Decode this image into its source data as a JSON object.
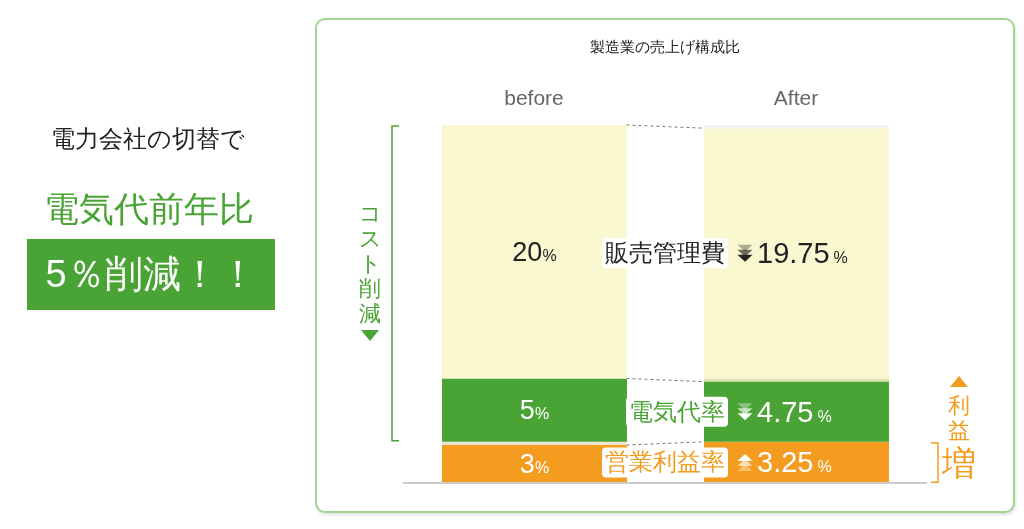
{
  "chart_data": {
    "type": "bar",
    "title": "製造業の売上げ構成比",
    "categories": [
      "before",
      "After"
    ],
    "stacked": true,
    "series": [
      {
        "name": "営業利益率",
        "color": "#f39c1f",
        "values": [
          3,
          3.25
        ],
        "value_labels": [
          "3%",
          "3.25%"
        ]
      },
      {
        "color": "#ede4d2",
        "values": [
          0.25,
          null
        ]
      },
      {
        "name": "電気代率",
        "color": "#4aa435",
        "values": [
          5,
          4.75
        ],
        "value_labels": [
          "5%",
          "4.75%"
        ]
      },
      {
        "color": "#dbe3ae",
        "values": [
          null,
          0.25
        ]
      },
      {
        "name": "販売管理費",
        "color": "#f9f8d1",
        "values": [
          20,
          19.75
        ],
        "value_labels": [
          "20%",
          "19.75%"
        ]
      },
      {
        "color": "#f3f3f3",
        "values": [
          null,
          0.25
        ]
      }
    ],
    "annotations": [
      "電力会社の切替で",
      "電気代前年比",
      "5％削減！！",
      "コスト削減",
      "利益増"
    ]
  }
}
